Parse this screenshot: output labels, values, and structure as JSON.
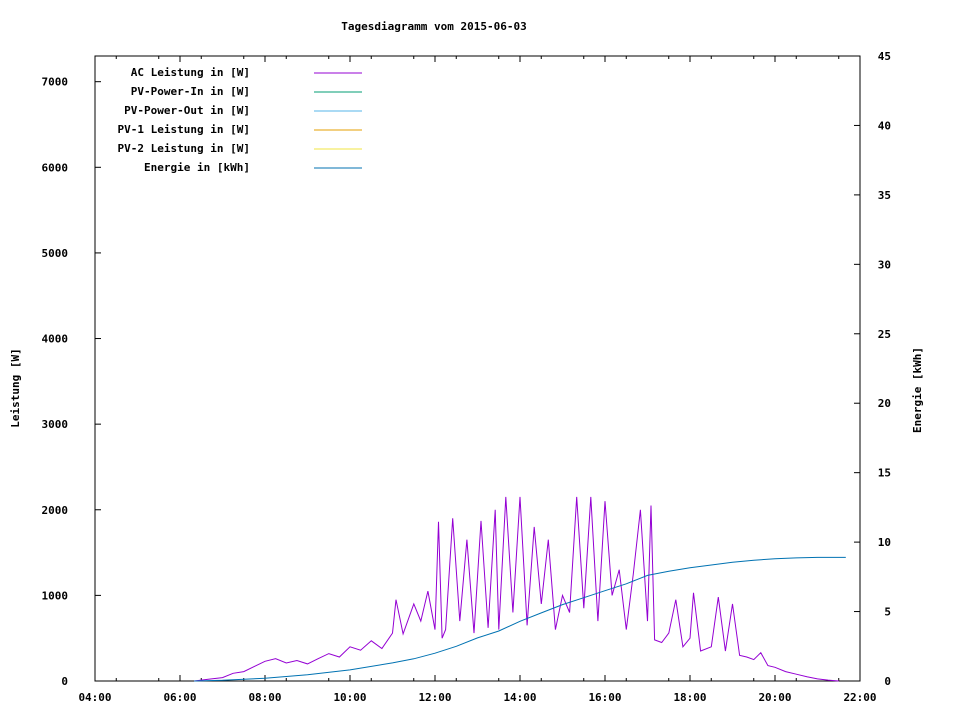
{
  "chart_data": {
    "type": "line",
    "title": "Tagesdiagramm vom 2015-06-03",
    "ylabel_left": "Leistung [W]",
    "ylabel_right": "Energie [kWh]",
    "xlabel": "",
    "x_range": [
      "04:00",
      "22:00"
    ],
    "x_ticks": [
      "04:00",
      "06:00",
      "08:00",
      "10:00",
      "12:00",
      "14:00",
      "16:00",
      "18:00",
      "20:00",
      "22:00"
    ],
    "y_left_range": [
      0,
      7300
    ],
    "y_left_ticks": [
      0,
      1000,
      2000,
      3000,
      4000,
      5000,
      6000,
      7000
    ],
    "y_right_range": [
      0,
      45
    ],
    "y_right_ticks": [
      0,
      5,
      10,
      15,
      20,
      25,
      30,
      35,
      40,
      45
    ],
    "grid": false,
    "legend_position": "top-left",
    "series": [
      {
        "name": "AC Leistung in [W]",
        "axis": "left",
        "color": "#9400D3",
        "points": [
          [
            "06:20",
            0
          ],
          [
            "06:40",
            20
          ],
          [
            "07:00",
            40
          ],
          [
            "07:15",
            90
          ],
          [
            "07:30",
            110
          ],
          [
            "07:45",
            170
          ],
          [
            "08:00",
            230
          ],
          [
            "08:15",
            260
          ],
          [
            "08:30",
            210
          ],
          [
            "08:45",
            240
          ],
          [
            "09:00",
            200
          ],
          [
            "09:15",
            260
          ],
          [
            "09:30",
            320
          ],
          [
            "09:45",
            280
          ],
          [
            "10:00",
            400
          ],
          [
            "10:15",
            360
          ],
          [
            "10:30",
            470
          ],
          [
            "10:45",
            380
          ],
          [
            "11:00",
            560
          ],
          [
            "11:05",
            950
          ],
          [
            "11:15",
            550
          ],
          [
            "11:30",
            900
          ],
          [
            "11:40",
            700
          ],
          [
            "11:50",
            1050
          ],
          [
            "12:00",
            600
          ],
          [
            "12:05",
            1860
          ],
          [
            "12:10",
            500
          ],
          [
            "12:15",
            600
          ],
          [
            "12:25",
            1900
          ],
          [
            "12:35",
            700
          ],
          [
            "12:45",
            1650
          ],
          [
            "12:55",
            560
          ],
          [
            "13:05",
            1870
          ],
          [
            "13:15",
            620
          ],
          [
            "13:25",
            2000
          ],
          [
            "13:30",
            600
          ],
          [
            "13:40",
            2150
          ],
          [
            "13:50",
            800
          ],
          [
            "14:00",
            2150
          ],
          [
            "14:10",
            650
          ],
          [
            "14:20",
            1800
          ],
          [
            "14:30",
            900
          ],
          [
            "14:40",
            1650
          ],
          [
            "14:50",
            600
          ],
          [
            "15:00",
            1000
          ],
          [
            "15:10",
            800
          ],
          [
            "15:20",
            2150
          ],
          [
            "15:30",
            850
          ],
          [
            "15:40",
            2150
          ],
          [
            "15:50",
            700
          ],
          [
            "16:00",
            2100
          ],
          [
            "16:10",
            1000
          ],
          [
            "16:20",
            1300
          ],
          [
            "16:30",
            600
          ],
          [
            "16:40",
            1250
          ],
          [
            "16:50",
            2000
          ],
          [
            "17:00",
            700
          ],
          [
            "17:05",
            2050
          ],
          [
            "17:10",
            480
          ],
          [
            "17:20",
            450
          ],
          [
            "17:30",
            560
          ],
          [
            "17:40",
            950
          ],
          [
            "17:50",
            400
          ],
          [
            "18:00",
            500
          ],
          [
            "18:05",
            1030
          ],
          [
            "18:15",
            350
          ],
          [
            "18:30",
            400
          ],
          [
            "18:40",
            980
          ],
          [
            "18:50",
            350
          ],
          [
            "19:00",
            900
          ],
          [
            "19:10",
            300
          ],
          [
            "19:20",
            280
          ],
          [
            "19:30",
            250
          ],
          [
            "19:40",
            330
          ],
          [
            "19:50",
            180
          ],
          [
            "20:00",
            160
          ],
          [
            "20:15",
            110
          ],
          [
            "20:30",
            80
          ],
          [
            "20:45",
            50
          ],
          [
            "21:00",
            25
          ],
          [
            "21:15",
            10
          ],
          [
            "21:30",
            0
          ]
        ]
      },
      {
        "name": "PV-Power-In in [W]",
        "axis": "left",
        "color": "#009E73",
        "points": []
      },
      {
        "name": "PV-Power-Out in [W]",
        "axis": "left",
        "color": "#56B4E9",
        "points": []
      },
      {
        "name": "PV-1 Leistung in [W]",
        "axis": "left",
        "color": "#E69F00",
        "points": []
      },
      {
        "name": "PV-2 Leistung in [W]",
        "axis": "left",
        "color": "#F0E442",
        "points": []
      },
      {
        "name": "Energie in [kWh]",
        "axis": "right",
        "color": "#0072B2",
        "points": [
          [
            "06:20",
            0
          ],
          [
            "07:00",
            0.05
          ],
          [
            "08:00",
            0.2
          ],
          [
            "09:00",
            0.45
          ],
          [
            "10:00",
            0.8
          ],
          [
            "11:00",
            1.3
          ],
          [
            "11:30",
            1.6
          ],
          [
            "12:00",
            2.0
          ],
          [
            "12:30",
            2.5
          ],
          [
            "13:00",
            3.1
          ],
          [
            "13:30",
            3.6
          ],
          [
            "14:00",
            4.3
          ],
          [
            "14:30",
            4.9
          ],
          [
            "15:00",
            5.5
          ],
          [
            "15:30",
            6.0
          ],
          [
            "16:00",
            6.5
          ],
          [
            "16:30",
            7.0
          ],
          [
            "17:00",
            7.6
          ],
          [
            "17:30",
            7.9
          ],
          [
            "18:00",
            8.15
          ],
          [
            "18:30",
            8.35
          ],
          [
            "19:00",
            8.55
          ],
          [
            "19:30",
            8.7
          ],
          [
            "20:00",
            8.8
          ],
          [
            "20:30",
            8.86
          ],
          [
            "21:00",
            8.9
          ],
          [
            "21:30",
            8.9
          ],
          [
            "21:40",
            8.9
          ]
        ]
      }
    ]
  }
}
